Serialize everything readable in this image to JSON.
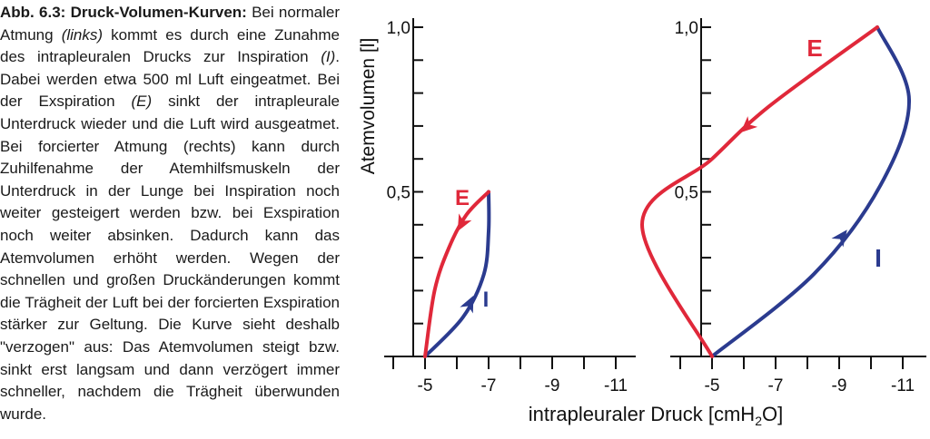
{
  "caption": {
    "label": "Abb. 6.3:",
    "heading": "Druck-Volumen-Kurven:",
    "p1": "Bei normaler Atmung",
    "links": "(links)",
    "p2": "kommt es durch eine Zunahme des intrapleuralen Drucks zur Inspiration",
    "insp": "(I)",
    "p3": ". Dabei werden etwa 500 ml Luft eingeatmet. Bei der Exspiration",
    "exsp": "(E)",
    "p4": "sinkt der intrapleurale Unterdruck wieder und die Luft wird ausgeatmet. Bei forcierter Atmung (rechts) kann durch Zuhilfenahme der Atemhilfsmuskeln der Unterdruck in der Lunge bei Inspiration noch weiter gesteigert werden bzw. bei Exspiration noch weiter absinken. Dadurch kann das Atemvolumen erhöht werden. Wegen der schnellen und großen Druckänderungen kommt die Trägheit der Luft bei der forcierten Exspiration stärker zur Geltung. Die Kurve sieht deshalb \"verzogen\" aus: Das Atemvolumen steigt bzw. sinkt erst langsam und dann verzögert immer schneller, nachdem die Trägheit überwunden wurde."
  },
  "colors": {
    "expiration": "#e0283a",
    "inspiration": "#2b3b8f",
    "axis": "#111111"
  },
  "chart_data": {
    "type": "line",
    "ylabel": "Atemvolumen [l]",
    "xlabel_main": "intrapleuraler Druck [cmH",
    "xlabel_sub": "2",
    "xlabel_end": "O]",
    "yticks": [
      "1,0",
      "0,5"
    ],
    "xticks": [
      "-5",
      "-7",
      "-9",
      "-11"
    ],
    "ylim": [
      0,
      1.0
    ],
    "xlim": [
      -3,
      -12
    ],
    "panels": [
      {
        "name": "normale Atmung",
        "series": [
          {
            "name": "I",
            "label": "I",
            "points": [
              [
                -5,
                0
              ],
              [
                -6.2,
                0.12
              ],
              [
                -6.85,
                0.25
              ],
              [
                -7,
                0.38
              ],
              [
                -7,
                0.5
              ]
            ]
          },
          {
            "name": "E",
            "label": "E",
            "points": [
              [
                -7,
                0.5
              ],
              [
                -6.3,
                0.43
              ],
              [
                -5.75,
                0.33
              ],
              [
                -5.3,
                0.2
              ],
              [
                -5,
                0
              ]
            ]
          }
        ]
      },
      {
        "name": "forcierte Atmung",
        "series": [
          {
            "name": "I",
            "label": "I",
            "points": [
              [
                -5,
                0
              ],
              [
                -8.2,
                0.25
              ],
              [
                -10.3,
                0.52
              ],
              [
                -11.2,
                0.78
              ],
              [
                -10.2,
                1.0
              ]
            ]
          },
          {
            "name": "E",
            "label": "E",
            "points": [
              [
                -10.2,
                1.0
              ],
              [
                -6.8,
                0.76
              ],
              [
                -5.0,
                0.6
              ],
              [
                -2.8,
                0.4
              ],
              [
                -5,
                0
              ]
            ]
          }
        ]
      }
    ]
  }
}
